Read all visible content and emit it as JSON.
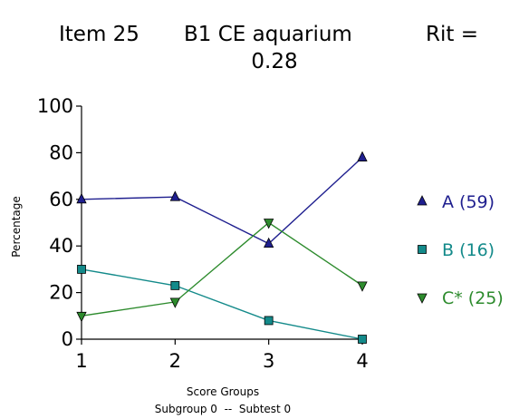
{
  "title": {
    "item": "Item 25",
    "name": "B1 CE aquarium",
    "rit_label": "Rit =",
    "rit_value": "0.28"
  },
  "chart_data": {
    "type": "line",
    "x": [
      1,
      2,
      3,
      4
    ],
    "categories": [
      "1",
      "2",
      "3",
      "4"
    ],
    "xlabel": "Score Groups",
    "ylabel": "Percentage",
    "footnote": "Subgroup 0  --  Subtest 0",
    "ylim": [
      0,
      100
    ],
    "yticks": [
      0,
      20,
      40,
      60,
      80,
      100
    ],
    "grid": false,
    "legend_position": "right",
    "series": [
      {
        "name": "A (59)",
        "marker": "triangle-up",
        "color": "#1f1f8f",
        "values": [
          60,
          61,
          41,
          78
        ]
      },
      {
        "name": "B (16)",
        "marker": "square",
        "color": "#138a8a",
        "values": [
          30,
          23,
          8,
          0
        ]
      },
      {
        "name": "C* (25)",
        "marker": "triangle-down",
        "color": "#2d8b2d",
        "values": [
          10,
          16,
          50,
          23
        ]
      }
    ]
  }
}
